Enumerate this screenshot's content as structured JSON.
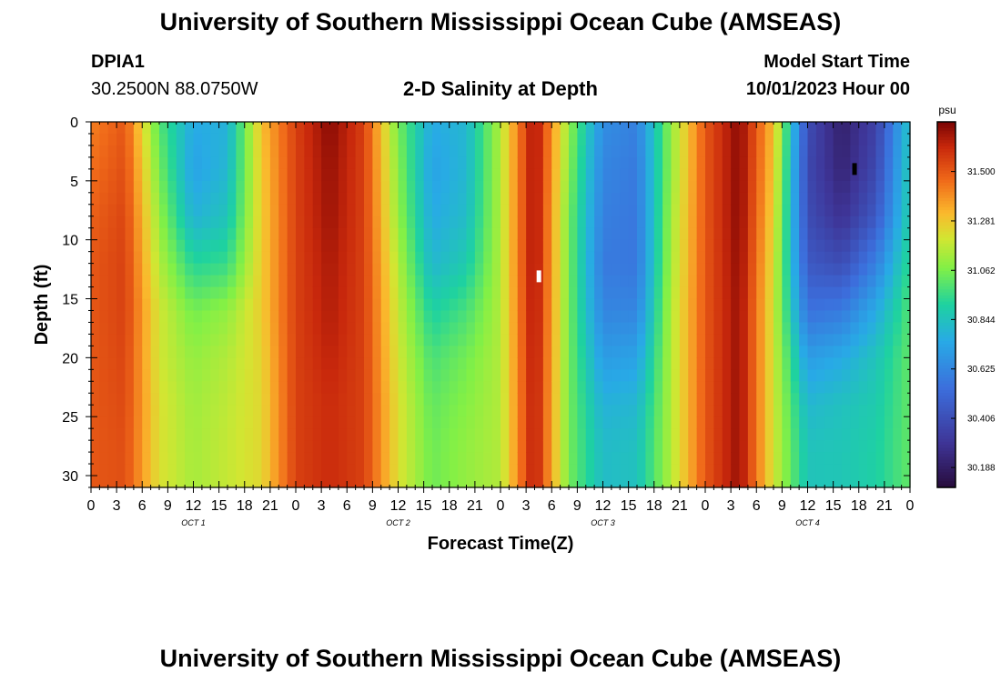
{
  "page": {
    "title": "University of Southern Mississippi Ocean Cube (AMSEAS)",
    "footer_title": "University of Southern Mississippi Ocean Cube (AMSEAS)",
    "station_id": "DPIA1",
    "coords": "30.2500N  88.0750W",
    "chart_heading": "2-D Salinity at Depth",
    "model_start_label": "Model Start Time",
    "model_start_value": "10/01/2023 Hour 00"
  },
  "chart_data": {
    "type": "heatmap",
    "title": "2-D Salinity at Depth",
    "xlabel": "Forecast Time(Z)",
    "ylabel": "Depth (ft)",
    "x_unit": "hours since 10/01/2023 00Z",
    "xlim": [
      0,
      96
    ],
    "ylim": [
      31,
      0
    ],
    "x_tick_labels": [
      "0",
      "3",
      "6",
      "9",
      "12",
      "15",
      "18",
      "21",
      "0",
      "3",
      "6",
      "9",
      "12",
      "15",
      "18",
      "21",
      "0",
      "3",
      "6",
      "9",
      "12",
      "15",
      "18",
      "21",
      "0",
      "3",
      "6",
      "9",
      "12",
      "15",
      "18",
      "21",
      "0"
    ],
    "y_ticks": [
      0,
      5,
      10,
      15,
      20,
      25,
      30
    ],
    "day_labels": [
      "OCT 1",
      "OCT 2",
      "OCT 3",
      "OCT 4"
    ],
    "colorbar": {
      "unit": "psu",
      "min": 30.1,
      "max": 31.72,
      "tick_values": [
        31.5,
        31.281,
        31.062,
        30.844,
        30.625,
        30.406,
        30.188
      ],
      "tick_labels": [
        "31.500",
        "31.281",
        "31.062",
        "30.844",
        "30.625",
        "30.406",
        "30.188"
      ]
    },
    "hours": [
      0,
      4,
      8,
      12,
      16,
      20,
      24,
      28,
      32,
      36,
      40,
      44,
      48,
      52,
      56,
      60,
      64,
      68,
      72,
      76,
      80,
      84,
      88,
      92,
      96
    ],
    "depths_ft": [
      0,
      4,
      8,
      12,
      16,
      20,
      24,
      28,
      31
    ],
    "salinity_psu": [
      [
        31.42,
        31.45,
        31.48,
        31.5,
        31.5,
        31.5,
        31.5,
        31.5,
        31.5
      ],
      [
        31.5,
        31.52,
        31.54,
        31.55,
        31.55,
        31.54,
        31.53,
        31.52,
        31.52
      ],
      [
        31.0,
        31.05,
        31.1,
        31.15,
        31.2,
        31.2,
        31.22,
        31.22,
        31.22
      ],
      [
        30.75,
        30.72,
        30.78,
        30.92,
        31.05,
        31.1,
        31.12,
        31.13,
        31.13
      ],
      [
        30.78,
        30.8,
        30.85,
        30.95,
        31.1,
        31.15,
        31.17,
        31.18,
        31.18
      ],
      [
        31.3,
        31.28,
        31.27,
        31.27,
        31.27,
        31.25,
        31.24,
        31.24,
        31.24
      ],
      [
        31.55,
        31.55,
        31.55,
        31.55,
        31.55,
        31.55,
        31.55,
        31.55,
        31.55
      ],
      [
        31.7,
        31.68,
        31.67,
        31.65,
        31.64,
        31.62,
        31.6,
        31.6,
        31.6
      ],
      [
        31.55,
        31.55,
        31.55,
        31.55,
        31.55,
        31.55,
        31.55,
        31.55,
        31.55
      ],
      [
        31.05,
        31.08,
        31.1,
        31.15,
        31.18,
        31.2,
        31.22,
        31.22,
        31.22
      ],
      [
        30.75,
        30.72,
        30.75,
        30.8,
        30.9,
        30.98,
        31.02,
        31.04,
        31.04
      ],
      [
        30.8,
        30.8,
        30.82,
        30.88,
        30.98,
        31.05,
        31.08,
        31.1,
        31.1
      ],
      [
        31.15,
        31.15,
        31.15,
        31.15,
        31.15,
        31.15,
        31.15,
        31.15,
        31.15
      ],
      [
        31.68,
        31.68,
        31.68,
        31.68,
        31.67,
        31.66,
        31.65,
        31.65,
        31.65
      ],
      [
        31.1,
        31.08,
        31.05,
        31.05,
        31.05,
        31.05,
        31.05,
        31.05,
        31.05
      ],
      [
        30.65,
        30.62,
        30.6,
        30.58,
        30.62,
        30.7,
        30.78,
        30.82,
        30.82
      ],
      [
        30.6,
        30.58,
        30.57,
        30.57,
        30.62,
        30.72,
        30.8,
        30.84,
        30.84
      ],
      [
        31.1,
        31.1,
        31.12,
        31.13,
        31.15,
        31.15,
        31.15,
        31.15,
        31.15
      ],
      [
        31.5,
        31.5,
        31.5,
        31.5,
        31.5,
        31.5,
        31.5,
        31.5,
        31.5
      ],
      [
        31.7,
        31.7,
        31.7,
        31.69,
        31.68,
        31.68,
        31.68,
        31.68,
        31.68
      ],
      [
        31.3,
        31.28,
        31.25,
        31.22,
        31.2,
        31.2,
        31.2,
        31.2,
        31.2
      ],
      [
        30.4,
        30.38,
        30.4,
        30.45,
        30.55,
        30.7,
        30.8,
        30.85,
        30.85
      ],
      [
        30.2,
        30.22,
        30.28,
        30.4,
        30.58,
        30.75,
        30.84,
        30.86,
        30.86
      ],
      [
        30.35,
        30.38,
        30.45,
        30.6,
        30.75,
        30.85,
        30.88,
        30.9,
        30.9
      ],
      [
        30.85,
        30.88,
        30.9,
        30.95,
        31.0,
        31.02,
        31.02,
        31.02,
        31.02
      ]
    ],
    "markers": [
      {
        "hour": 52.5,
        "depth_from": 12.6,
        "depth_to": 13.6,
        "color": "#ffffff"
      },
      {
        "hour": 89.5,
        "depth_from": 3.5,
        "depth_to": 4.5,
        "color": "#000000"
      }
    ]
  }
}
